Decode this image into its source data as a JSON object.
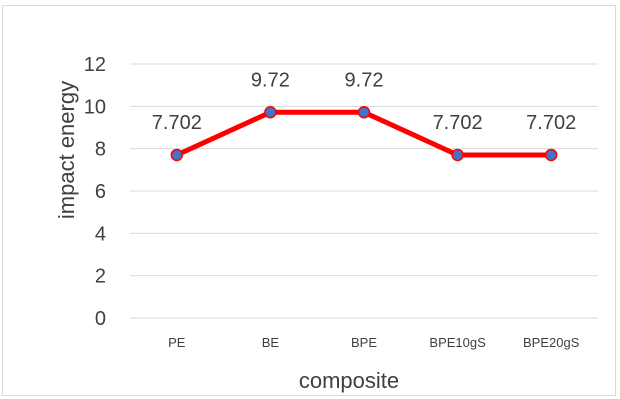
{
  "chart_data": {
    "type": "line",
    "categories": [
      "PE",
      "BE",
      "BPE",
      "BPE10gS",
      "BPE20gS"
    ],
    "series": [
      {
        "values": [
          7.702,
          9.72,
          9.72,
          7.702,
          7.702
        ]
      }
    ],
    "data_labels": [
      "7.702",
      "9.72",
      "9.72",
      "7.702",
      "7.702"
    ],
    "title": "",
    "xlabel": "composite",
    "ylabel": "impact energy",
    "ylim": [
      0,
      12
    ],
    "yticks": [
      "0",
      "2",
      "4",
      "6",
      "8",
      "10",
      "12"
    ],
    "grid": true,
    "legend": "none",
    "colors": {
      "line": "#ff0000",
      "marker_fill": "#4472c4",
      "grid": "#d9d9d9",
      "text": "#404040"
    }
  }
}
